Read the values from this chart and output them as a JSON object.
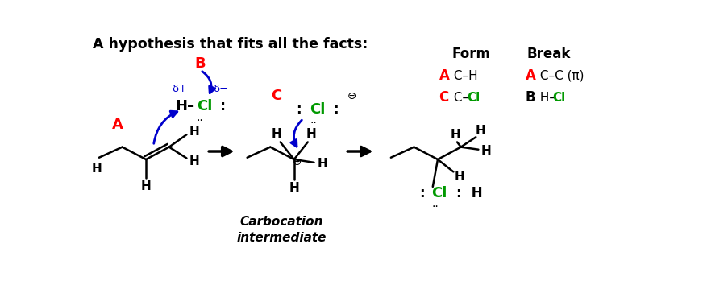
{
  "title": "A hypothesis that fits all the facts:",
  "bg_color": "#ffffff",
  "red": "#ff0000",
  "green": "#009900",
  "blue": "#0000cc",
  "black": "#000000",
  "figsize": [
    8.72,
    3.54
  ],
  "dpi": 100,
  "form_label": "Form",
  "break_label": "Break",
  "carbocation_label1": "Carbocation",
  "carbocation_label2": "intermediate"
}
